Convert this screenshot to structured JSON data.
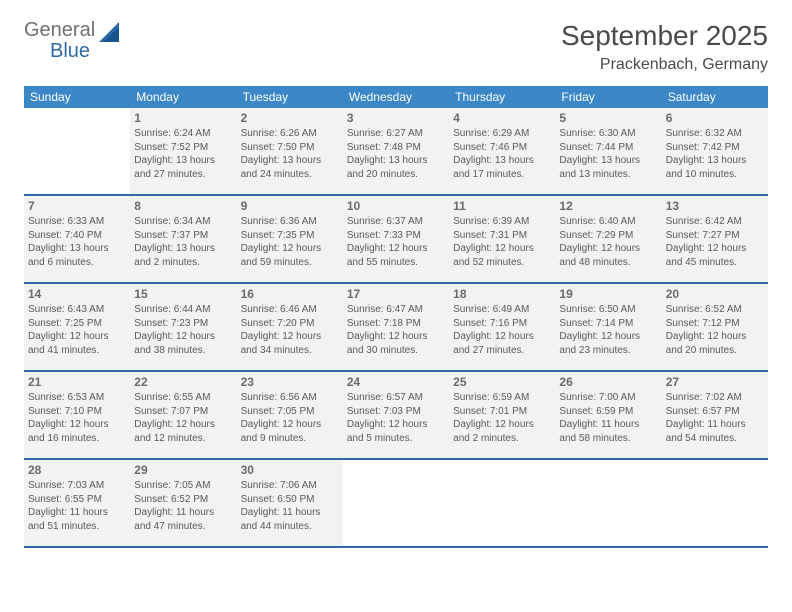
{
  "logo": {
    "text1": "General",
    "text2": "Blue"
  },
  "title": "September 2025",
  "location": "Prackenbach, Germany",
  "colors": {
    "header_bg": "#3b87c8",
    "rule": "#2f6aa8",
    "cell_bg": "#f2f2f2",
    "page_bg": "#ffffff",
    "text": "#444444",
    "logo_gray": "#707070",
    "logo_blue": "#2f6aa8"
  },
  "dow": [
    "Sunday",
    "Monday",
    "Tuesday",
    "Wednesday",
    "Thursday",
    "Friday",
    "Saturday"
  ],
  "weeks": [
    [
      null,
      {
        "n": "1",
        "sr": "Sunrise: 6:24 AM",
        "ss": "Sunset: 7:52 PM",
        "d1": "Daylight: 13 hours",
        "d2": "and 27 minutes."
      },
      {
        "n": "2",
        "sr": "Sunrise: 6:26 AM",
        "ss": "Sunset: 7:50 PM",
        "d1": "Daylight: 13 hours",
        "d2": "and 24 minutes."
      },
      {
        "n": "3",
        "sr": "Sunrise: 6:27 AM",
        "ss": "Sunset: 7:48 PM",
        "d1": "Daylight: 13 hours",
        "d2": "and 20 minutes."
      },
      {
        "n": "4",
        "sr": "Sunrise: 6:29 AM",
        "ss": "Sunset: 7:46 PM",
        "d1": "Daylight: 13 hours",
        "d2": "and 17 minutes."
      },
      {
        "n": "5",
        "sr": "Sunrise: 6:30 AM",
        "ss": "Sunset: 7:44 PM",
        "d1": "Daylight: 13 hours",
        "d2": "and 13 minutes."
      },
      {
        "n": "6",
        "sr": "Sunrise: 6:32 AM",
        "ss": "Sunset: 7:42 PM",
        "d1": "Daylight: 13 hours",
        "d2": "and 10 minutes."
      }
    ],
    [
      {
        "n": "7",
        "sr": "Sunrise: 6:33 AM",
        "ss": "Sunset: 7:40 PM",
        "d1": "Daylight: 13 hours",
        "d2": "and 6 minutes."
      },
      {
        "n": "8",
        "sr": "Sunrise: 6:34 AM",
        "ss": "Sunset: 7:37 PM",
        "d1": "Daylight: 13 hours",
        "d2": "and 2 minutes."
      },
      {
        "n": "9",
        "sr": "Sunrise: 6:36 AM",
        "ss": "Sunset: 7:35 PM",
        "d1": "Daylight: 12 hours",
        "d2": "and 59 minutes."
      },
      {
        "n": "10",
        "sr": "Sunrise: 6:37 AM",
        "ss": "Sunset: 7:33 PM",
        "d1": "Daylight: 12 hours",
        "d2": "and 55 minutes."
      },
      {
        "n": "11",
        "sr": "Sunrise: 6:39 AM",
        "ss": "Sunset: 7:31 PM",
        "d1": "Daylight: 12 hours",
        "d2": "and 52 minutes."
      },
      {
        "n": "12",
        "sr": "Sunrise: 6:40 AM",
        "ss": "Sunset: 7:29 PM",
        "d1": "Daylight: 12 hours",
        "d2": "and 48 minutes."
      },
      {
        "n": "13",
        "sr": "Sunrise: 6:42 AM",
        "ss": "Sunset: 7:27 PM",
        "d1": "Daylight: 12 hours",
        "d2": "and 45 minutes."
      }
    ],
    [
      {
        "n": "14",
        "sr": "Sunrise: 6:43 AM",
        "ss": "Sunset: 7:25 PM",
        "d1": "Daylight: 12 hours",
        "d2": "and 41 minutes."
      },
      {
        "n": "15",
        "sr": "Sunrise: 6:44 AM",
        "ss": "Sunset: 7:23 PM",
        "d1": "Daylight: 12 hours",
        "d2": "and 38 minutes."
      },
      {
        "n": "16",
        "sr": "Sunrise: 6:46 AM",
        "ss": "Sunset: 7:20 PM",
        "d1": "Daylight: 12 hours",
        "d2": "and 34 minutes."
      },
      {
        "n": "17",
        "sr": "Sunrise: 6:47 AM",
        "ss": "Sunset: 7:18 PM",
        "d1": "Daylight: 12 hours",
        "d2": "and 30 minutes."
      },
      {
        "n": "18",
        "sr": "Sunrise: 6:49 AM",
        "ss": "Sunset: 7:16 PM",
        "d1": "Daylight: 12 hours",
        "d2": "and 27 minutes."
      },
      {
        "n": "19",
        "sr": "Sunrise: 6:50 AM",
        "ss": "Sunset: 7:14 PM",
        "d1": "Daylight: 12 hours",
        "d2": "and 23 minutes."
      },
      {
        "n": "20",
        "sr": "Sunrise: 6:52 AM",
        "ss": "Sunset: 7:12 PM",
        "d1": "Daylight: 12 hours",
        "d2": "and 20 minutes."
      }
    ],
    [
      {
        "n": "21",
        "sr": "Sunrise: 6:53 AM",
        "ss": "Sunset: 7:10 PM",
        "d1": "Daylight: 12 hours",
        "d2": "and 16 minutes."
      },
      {
        "n": "22",
        "sr": "Sunrise: 6:55 AM",
        "ss": "Sunset: 7:07 PM",
        "d1": "Daylight: 12 hours",
        "d2": "and 12 minutes."
      },
      {
        "n": "23",
        "sr": "Sunrise: 6:56 AM",
        "ss": "Sunset: 7:05 PM",
        "d1": "Daylight: 12 hours",
        "d2": "and 9 minutes."
      },
      {
        "n": "24",
        "sr": "Sunrise: 6:57 AM",
        "ss": "Sunset: 7:03 PM",
        "d1": "Daylight: 12 hours",
        "d2": "and 5 minutes."
      },
      {
        "n": "25",
        "sr": "Sunrise: 6:59 AM",
        "ss": "Sunset: 7:01 PM",
        "d1": "Daylight: 12 hours",
        "d2": "and 2 minutes."
      },
      {
        "n": "26",
        "sr": "Sunrise: 7:00 AM",
        "ss": "Sunset: 6:59 PM",
        "d1": "Daylight: 11 hours",
        "d2": "and 58 minutes."
      },
      {
        "n": "27",
        "sr": "Sunrise: 7:02 AM",
        "ss": "Sunset: 6:57 PM",
        "d1": "Daylight: 11 hours",
        "d2": "and 54 minutes."
      }
    ],
    [
      {
        "n": "28",
        "sr": "Sunrise: 7:03 AM",
        "ss": "Sunset: 6:55 PM",
        "d1": "Daylight: 11 hours",
        "d2": "and 51 minutes."
      },
      {
        "n": "29",
        "sr": "Sunrise: 7:05 AM",
        "ss": "Sunset: 6:52 PM",
        "d1": "Daylight: 11 hours",
        "d2": "and 47 minutes."
      },
      {
        "n": "30",
        "sr": "Sunrise: 7:06 AM",
        "ss": "Sunset: 6:50 PM",
        "d1": "Daylight: 11 hours",
        "d2": "and 44 minutes."
      },
      null,
      null,
      null,
      null
    ]
  ]
}
